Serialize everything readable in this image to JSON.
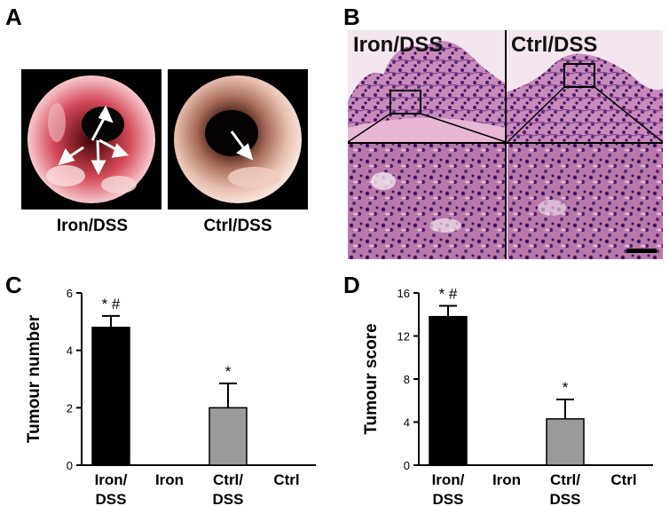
{
  "panels": {
    "A": {
      "label": "A",
      "images": [
        {
          "caption": "Iron/DSS"
        },
        {
          "caption": "Ctrl/DSS"
        }
      ]
    },
    "B": {
      "label": "B",
      "overlay_left": "Iron/DSS",
      "overlay_right": "Ctrl/DSS"
    },
    "C": {
      "label": "C"
    },
    "D": {
      "label": "D"
    }
  },
  "colors": {
    "black_bar": "#000000",
    "gray_bar": "#9a9a9a",
    "tissue_pink": "#d9a6c6",
    "tissue_purple": "#5a2a7a"
  },
  "chart_data": [
    {
      "type": "bar",
      "ylabel": "Tumour number",
      "ylim": [
        0,
        6
      ],
      "yticks": [
        "0",
        "2",
        "4",
        "6"
      ],
      "categories": [
        [
          "Iron/",
          "DSS"
        ],
        [
          "Iron"
        ],
        [
          "Ctrl/",
          "DSS"
        ],
        [
          "Ctrl"
        ]
      ],
      "values": [
        4.8,
        0,
        2.0,
        0
      ],
      "errors": [
        0.4,
        0,
        0.85,
        0
      ],
      "fills": [
        "#000000",
        "#ffffff",
        "#9a9a9a",
        "#ffffff"
      ],
      "annotations": [
        "* #",
        "",
        "*",
        ""
      ]
    },
    {
      "type": "bar",
      "ylabel": "Tumour score",
      "ylim": [
        0,
        16
      ],
      "yticks": [
        "0",
        "4",
        "8",
        "12",
        "16"
      ],
      "categories": [
        [
          "Iron/",
          "DSS"
        ],
        [
          "Iron"
        ],
        [
          "Ctrl/",
          "DSS"
        ],
        [
          "Ctrl"
        ]
      ],
      "values": [
        13.8,
        0,
        4.3,
        0
      ],
      "errors": [
        1.0,
        0,
        1.8,
        0
      ],
      "fills": [
        "#000000",
        "#ffffff",
        "#9a9a9a",
        "#ffffff"
      ],
      "annotations": [
        "* #",
        "",
        "*",
        ""
      ]
    }
  ]
}
